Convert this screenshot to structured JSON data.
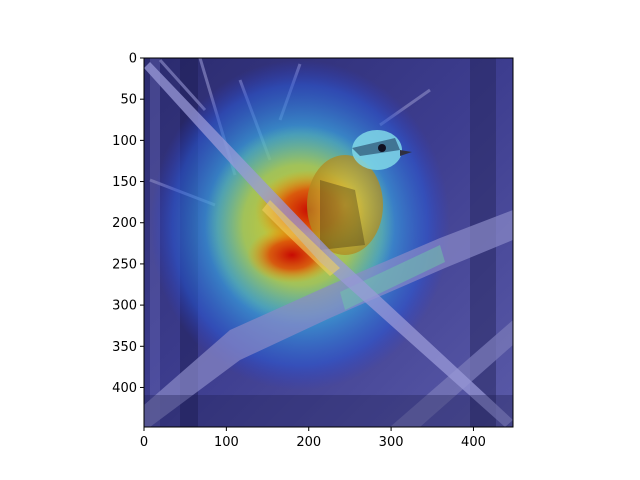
{
  "image": {
    "subject": "bird on branch with attention heatmap overlay",
    "colormap": "jet",
    "base_tint": "#3a3a8a",
    "hotspot_color": "#d40000"
  },
  "axes": {
    "x_ticks": [
      "0",
      "100",
      "200",
      "300",
      "400"
    ],
    "y_ticks": [
      "0",
      "50",
      "100",
      "150",
      "200",
      "250",
      "300",
      "350",
      "400"
    ],
    "xlim": [
      0,
      448
    ],
    "ylim": [
      448,
      0
    ]
  }
}
